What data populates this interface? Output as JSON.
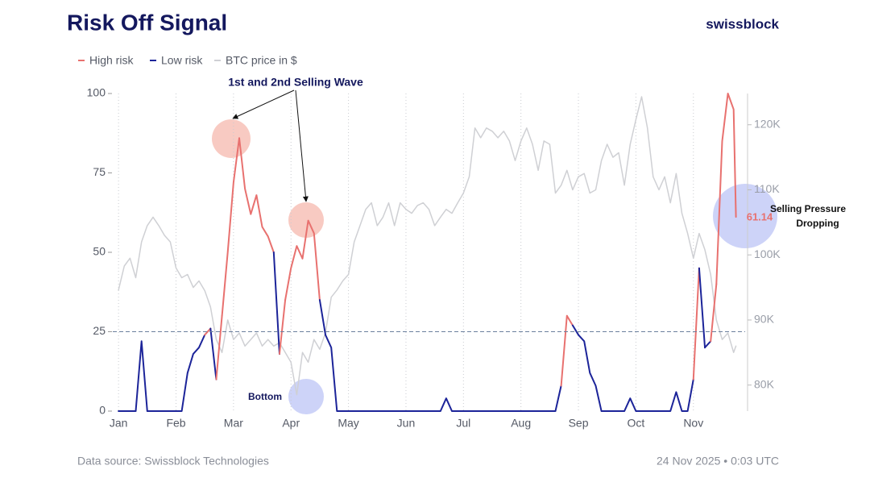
{
  "chart_data": {
    "type": "line",
    "title": "Risk Off Signal",
    "brand": "swissblock",
    "source": "Data source: Swissblock Technologies",
    "timestamp": "24 Nov 2025 • 0:03 UTC",
    "annotations": [
      "1st and 2nd Selling Wave",
      "Bottom",
      "Selling Pressure",
      "Dropping"
    ],
    "threshold": 25,
    "xlim": [
      -0.1,
      10.9
    ],
    "xticks": [
      {
        "value": 0,
        "label": "Jan"
      },
      {
        "value": 1,
        "label": "Feb"
      },
      {
        "value": 2,
        "label": "Mar"
      },
      {
        "value": 3,
        "label": "Apr"
      },
      {
        "value": 4,
        "label": "May"
      },
      {
        "value": 5,
        "label": "Jun"
      },
      {
        "value": 6,
        "label": "Jul"
      },
      {
        "value": 7,
        "label": "Aug"
      },
      {
        "value": 8,
        "label": "Sep"
      },
      {
        "value": 9,
        "label": "Oct"
      },
      {
        "value": 10,
        "label": "Nov"
      }
    ],
    "ylim": [
      0,
      100
    ],
    "yticks": [
      0,
      25,
      50,
      75,
      100
    ],
    "y2lim": [
      76000,
      124800
    ],
    "y2ticks": [
      {
        "value": 80000,
        "label": "80K"
      },
      {
        "value": 90000,
        "label": "90K"
      },
      {
        "value": 100000,
        "label": "100K"
      },
      {
        "value": 110000,
        "label": "110K"
      },
      {
        "value": 120000,
        "label": "120K"
      }
    ],
    "x": [
      0,
      0.1,
      0.2,
      0.3,
      0.4,
      0.5,
      0.6,
      0.7,
      0.8,
      0.9,
      1,
      1.1,
      1.2,
      1.3,
      1.4,
      1.5,
      1.6,
      1.7,
      1.8,
      1.9,
      2,
      2.1,
      2.2,
      2.3,
      2.4,
      2.5,
      2.6,
      2.7,
      2.8,
      2.9,
      3,
      3.1,
      3.2,
      3.3,
      3.4,
      3.5,
      3.6,
      3.7,
      3.8,
      3.9,
      4,
      4.1,
      4.2,
      4.3,
      4.4,
      4.5,
      4.6,
      4.7,
      4.8,
      4.9,
      5,
      5.1,
      5.2,
      5.3,
      5.4,
      5.5,
      5.6,
      5.7,
      5.8,
      5.9,
      6,
      6.1,
      6.2,
      6.3,
      6.4,
      6.5,
      6.6,
      6.7,
      6.8,
      6.9,
      7,
      7.1,
      7.2,
      7.3,
      7.4,
      7.5,
      7.6,
      7.7,
      7.8,
      7.9,
      8,
      8.1,
      8.2,
      8.3,
      8.4,
      8.5,
      8.6,
      8.7,
      8.8,
      8.9,
      9,
      9.1,
      9.2,
      9.3,
      9.4,
      9.5,
      9.6,
      9.7,
      9.8,
      9.9,
      10,
      10.1,
      10.2,
      10.3,
      10.4,
      10.5,
      10.6,
      10.7,
      10.74
    ],
    "series": [
      {
        "name": "High risk",
        "color": "#e8716f",
        "values": [
          null,
          null,
          null,
          null,
          null,
          null,
          null,
          null,
          null,
          null,
          null,
          null,
          null,
          null,
          null,
          null,
          26,
          null,
          30,
          50,
          72,
          86,
          70,
          62,
          68,
          58,
          55,
          50,
          null,
          35,
          45,
          52,
          48,
          60,
          56,
          35,
          null,
          null,
          null,
          null,
          null,
          null,
          null,
          null,
          null,
          null,
          null,
          null,
          null,
          null,
          null,
          null,
          null,
          null,
          null,
          null,
          null,
          null,
          null,
          null,
          null,
          null,
          null,
          null,
          null,
          null,
          null,
          null,
          null,
          null,
          null,
          null,
          null,
          null,
          null,
          null,
          null,
          null,
          30,
          27,
          null,
          null,
          null,
          null,
          null,
          null,
          null,
          null,
          null,
          null,
          null,
          null,
          null,
          null,
          null,
          null,
          null,
          null,
          null,
          null,
          null,
          45,
          null,
          null,
          40,
          85,
          100,
          95,
          61.14
        ]
      },
      {
        "name": "Low risk",
        "color": "#1c2499",
        "values": [
          0,
          0,
          0,
          0,
          22,
          0,
          0,
          0,
          0,
          0,
          0,
          0,
          12,
          18,
          20,
          24,
          null,
          10,
          null,
          null,
          null,
          null,
          null,
          null,
          null,
          null,
          null,
          null,
          18,
          null,
          null,
          null,
          null,
          null,
          null,
          null,
          24,
          20,
          0,
          0,
          0,
          0,
          0,
          0,
          0,
          0,
          0,
          0,
          0,
          0,
          0,
          0,
          0,
          0,
          0,
          0,
          0,
          4,
          0,
          0,
          0,
          0,
          0,
          0,
          0,
          0,
          0,
          0,
          0,
          0,
          0,
          0,
          0,
          0,
          0,
          0,
          0,
          8,
          null,
          null,
          24,
          22,
          12,
          8,
          0,
          0,
          0,
          0,
          0,
          4,
          0,
          0,
          0,
          0,
          0,
          0,
          0,
          6,
          0,
          0,
          10,
          null,
          20,
          22,
          null,
          null,
          null,
          null,
          null
        ]
      },
      {
        "name": "BTC price in $",
        "color": "#cfd0d4",
        "axis": "y2",
        "values": [
          94600,
          98300,
          99500,
          96500,
          102000,
          104500,
          105800,
          104500,
          103000,
          102000,
          98000,
          96500,
          97000,
          95000,
          96000,
          94500,
          92000,
          87000,
          85000,
          90000,
          87000,
          88000,
          86000,
          87000,
          88000,
          86000,
          87000,
          86000,
          86500,
          85000,
          83500,
          78500,
          85000,
          83500,
          87000,
          85500,
          88000,
          93500,
          94600,
          96000,
          97000,
          102000,
          104500,
          107000,
          108000,
          104500,
          105800,
          108000,
          104500,
          108000,
          107000,
          106400,
          107600,
          108000,
          107000,
          104500,
          105800,
          107000,
          106400,
          108000,
          109500,
          112000,
          119500,
          118000,
          119500,
          119000,
          118000,
          119000,
          117500,
          114500,
          117500,
          119500,
          117000,
          113000,
          117500,
          117000,
          109500,
          110700,
          113000,
          110000,
          112000,
          112500,
          109500,
          110000,
          114500,
          117000,
          115000,
          115700,
          110700,
          117000,
          120800,
          124300,
          119500,
          112000,
          110000,
          112000,
          108000,
          112500,
          106400,
          103300,
          99500,
          103300,
          100800,
          97000,
          90000,
          87000,
          88000,
          85000,
          86000
        ]
      }
    ]
  }
}
